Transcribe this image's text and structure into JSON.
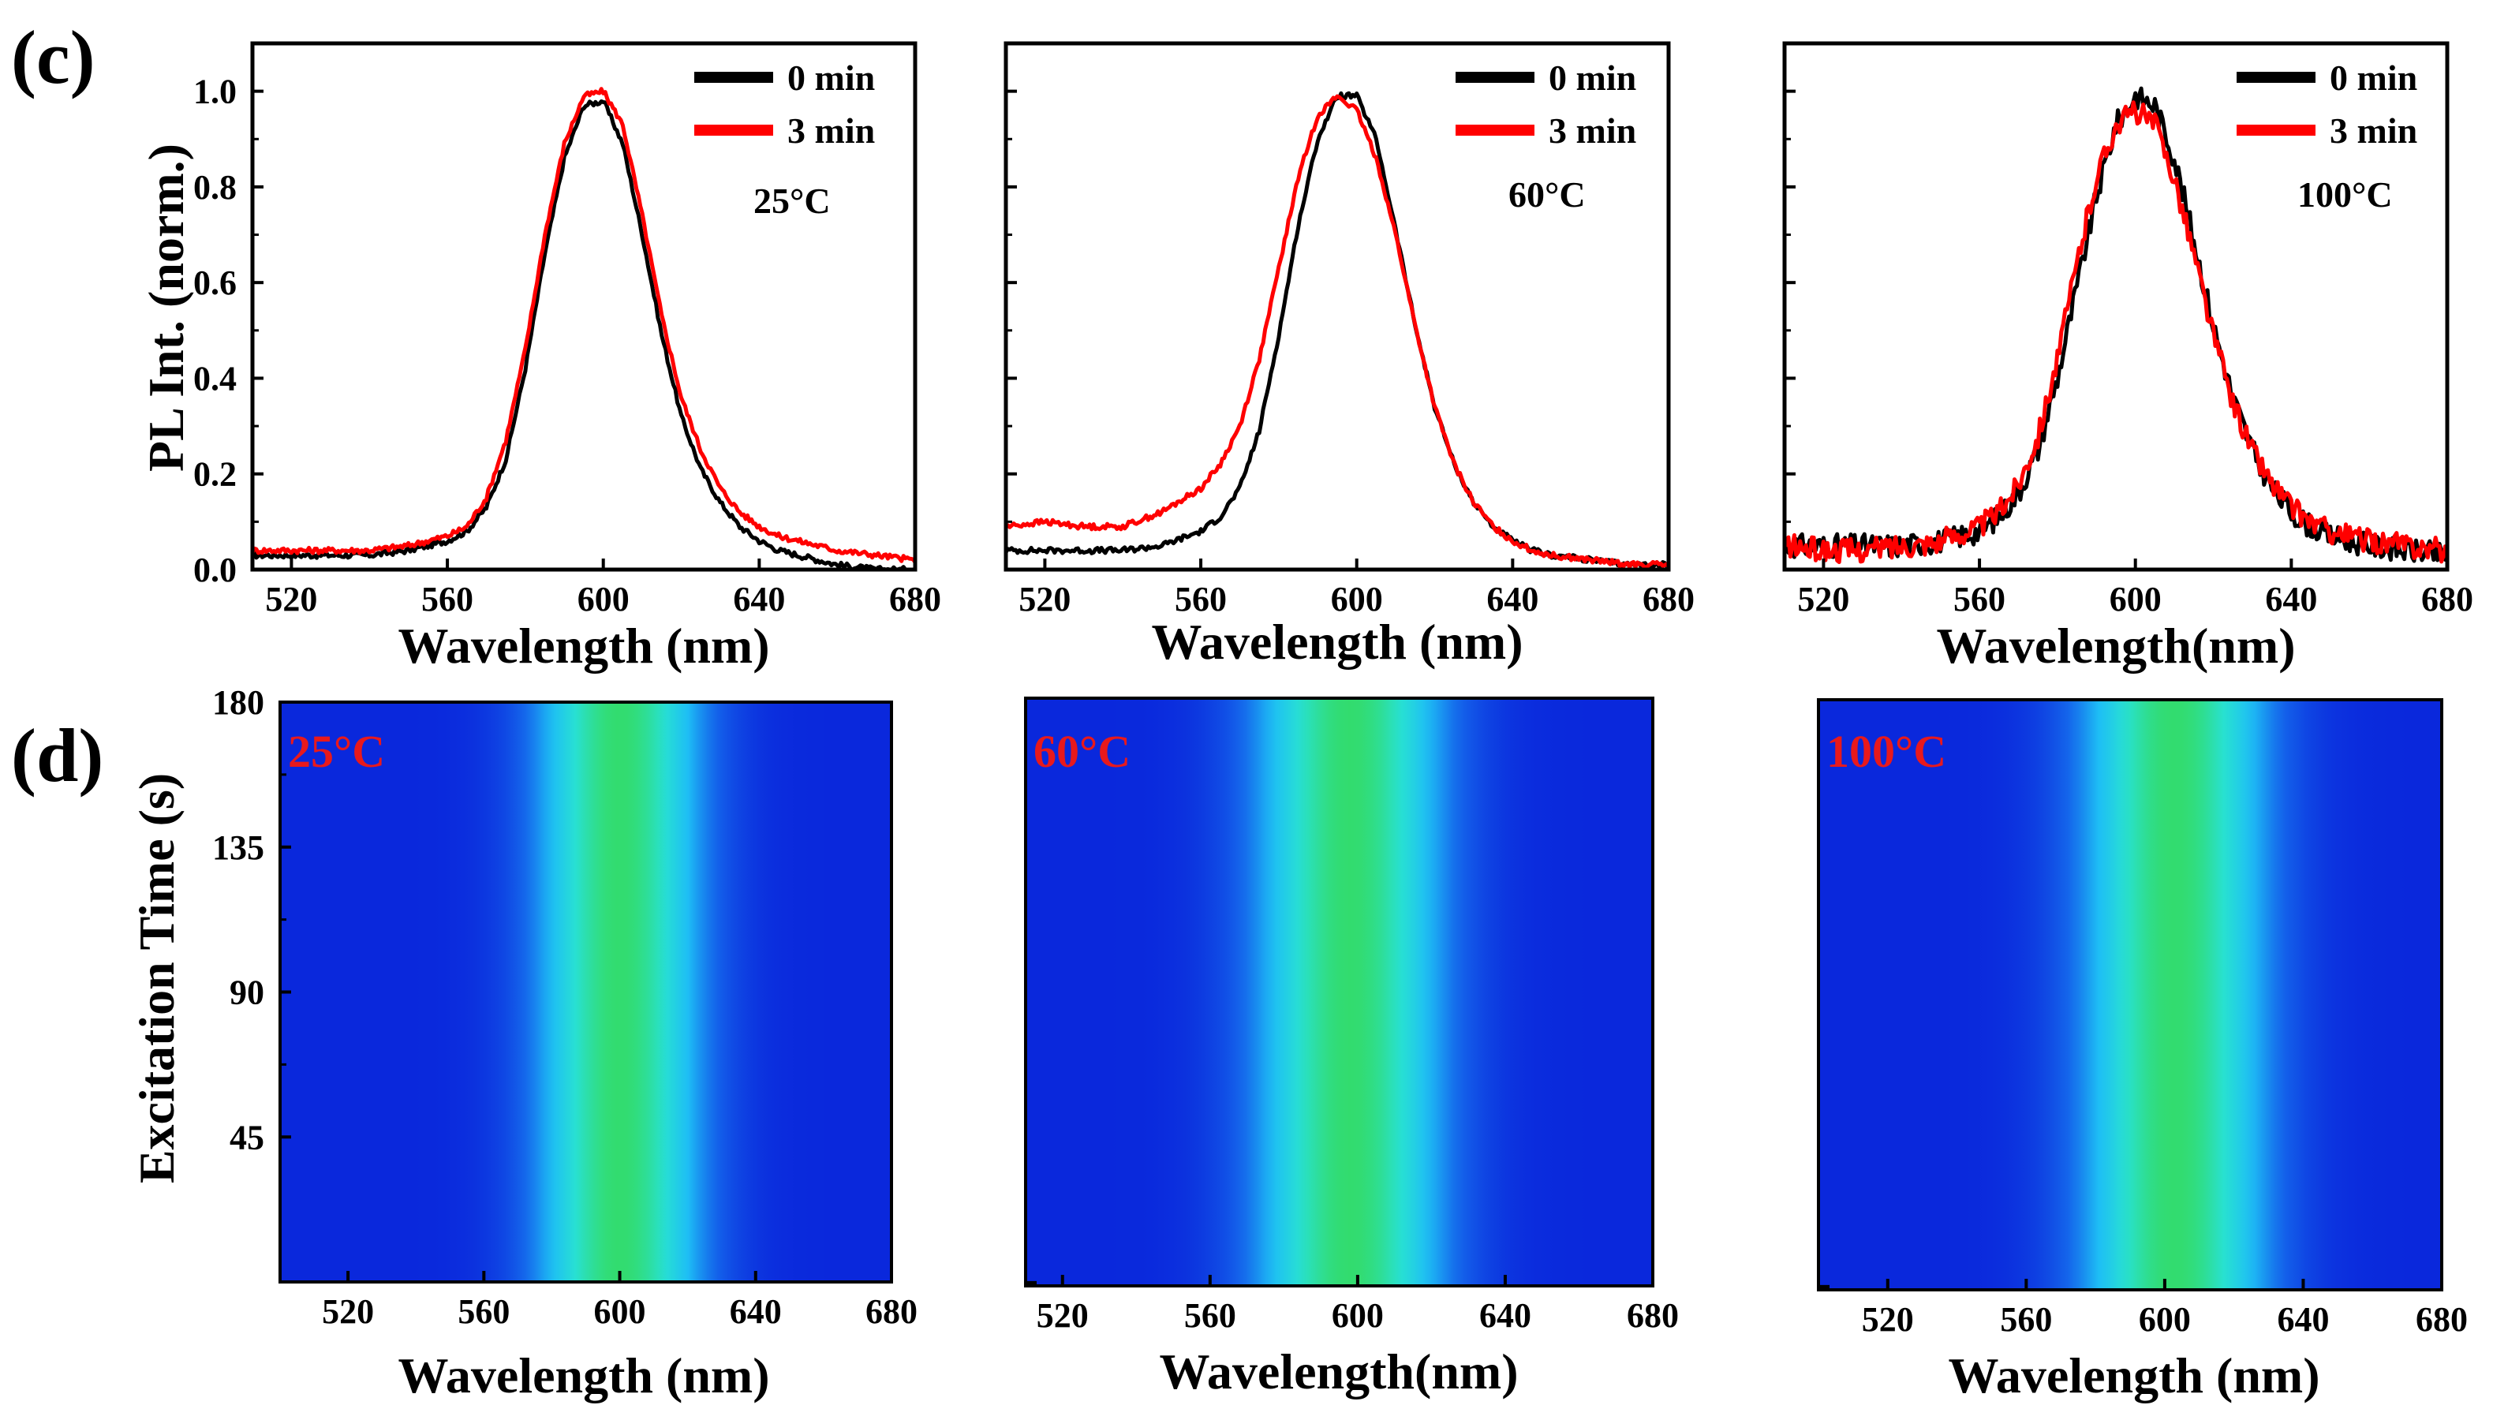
{
  "panel_labels": {
    "c": "(c)",
    "d": "(d)"
  },
  "colors": {
    "series_0min": "#000000",
    "series_3min": "#ff0000",
    "map_label": "#e8191c"
  },
  "chart_data": [
    {
      "id": "c1",
      "type": "line",
      "xlabel": "Wavelength (nm)",
      "ylabel": "PL Int. (norm.)",
      "xlim": [
        510,
        680
      ],
      "ylim": [
        0,
        1.1
      ],
      "xticks": [
        520,
        560,
        600,
        640,
        680
      ],
      "yticks": [
        0.0,
        0.2,
        0.4,
        0.6,
        0.8,
        1.0
      ],
      "annotation": "25°C",
      "legend_position": "top-right",
      "series": [
        {
          "name": "0 min",
          "color": "#000000",
          "x": [
            510,
            520,
            530,
            540,
            550,
            560,
            565,
            570,
            575,
            580,
            585,
            590,
            595,
            600,
            605,
            610,
            615,
            620,
            625,
            630,
            635,
            640,
            645,
            650,
            660,
            670,
            680
          ],
          "y": [
            0.03,
            0.03,
            0.03,
            0.03,
            0.04,
            0.06,
            0.08,
            0.13,
            0.23,
            0.42,
            0.66,
            0.86,
            0.97,
            0.98,
            0.89,
            0.7,
            0.49,
            0.32,
            0.21,
            0.14,
            0.09,
            0.06,
            0.04,
            0.03,
            0.01,
            0.0,
            0.0
          ]
        },
        {
          "name": "3 min",
          "color": "#ff0000",
          "x": [
            510,
            520,
            530,
            540,
            550,
            560,
            565,
            570,
            575,
            580,
            585,
            590,
            595,
            600,
            605,
            610,
            615,
            620,
            625,
            630,
            635,
            640,
            645,
            650,
            660,
            670,
            680
          ],
          "y": [
            0.04,
            0.04,
            0.04,
            0.04,
            0.05,
            0.07,
            0.09,
            0.15,
            0.27,
            0.46,
            0.7,
            0.89,
            0.99,
            1.0,
            0.93,
            0.74,
            0.53,
            0.36,
            0.25,
            0.17,
            0.12,
            0.09,
            0.07,
            0.06,
            0.04,
            0.03,
            0.02
          ]
        }
      ]
    },
    {
      "id": "c2",
      "type": "line",
      "xlabel": "Wavelength (nm)",
      "xlim": [
        510,
        680
      ],
      "ylim": [
        0,
        1.1
      ],
      "xticks": [
        520,
        560,
        600,
        640,
        680
      ],
      "annotation": "60°C",
      "legend_position": "top-right",
      "series": [
        {
          "name": "0 min",
          "color": "#000000",
          "x": [
            510,
            520,
            530,
            540,
            550,
            560,
            565,
            570,
            575,
            580,
            585,
            590,
            595,
            600,
            605,
            610,
            615,
            620,
            625,
            630,
            635,
            640,
            645,
            650,
            660,
            670,
            680
          ],
          "y": [
            0.04,
            0.04,
            0.04,
            0.04,
            0.05,
            0.08,
            0.11,
            0.17,
            0.29,
            0.49,
            0.72,
            0.9,
            0.99,
            0.99,
            0.9,
            0.71,
            0.51,
            0.34,
            0.22,
            0.14,
            0.09,
            0.06,
            0.04,
            0.03,
            0.02,
            0.01,
            0.01
          ]
        },
        {
          "name": "3 min",
          "color": "#ff0000",
          "x": [
            510,
            520,
            530,
            540,
            550,
            560,
            565,
            570,
            575,
            580,
            585,
            590,
            595,
            600,
            605,
            610,
            615,
            620,
            625,
            630,
            635,
            640,
            645,
            650,
            660,
            670,
            680
          ],
          "y": [
            0.09,
            0.1,
            0.09,
            0.09,
            0.12,
            0.17,
            0.22,
            0.3,
            0.44,
            0.63,
            0.82,
            0.95,
            0.99,
            0.96,
            0.86,
            0.7,
            0.51,
            0.34,
            0.22,
            0.14,
            0.09,
            0.06,
            0.04,
            0.03,
            0.02,
            0.01,
            0.01
          ]
        }
      ]
    },
    {
      "id": "c3",
      "type": "line",
      "xlabel": "Wavelength(nm)",
      "xlim": [
        510,
        680
      ],
      "ylim": [
        0,
        1.1
      ],
      "xticks": [
        520,
        560,
        600,
        640,
        680
      ],
      "annotation": "100°C",
      "legend_position": "top-right",
      "series": [
        {
          "name": "0 min",
          "color": "#000000",
          "x": [
            510,
            520,
            530,
            540,
            550,
            560,
            565,
            570,
            575,
            580,
            585,
            590,
            595,
            600,
            605,
            610,
            615,
            620,
            625,
            630,
            635,
            640,
            645,
            650,
            660,
            670,
            680
          ],
          "y": [
            0.05,
            0.05,
            0.05,
            0.05,
            0.06,
            0.08,
            0.11,
            0.16,
            0.25,
            0.4,
            0.59,
            0.78,
            0.93,
            0.99,
            0.97,
            0.86,
            0.69,
            0.51,
            0.36,
            0.25,
            0.17,
            0.12,
            0.09,
            0.07,
            0.05,
            0.04,
            0.03
          ]
        },
        {
          "name": "3 min",
          "color": "#ff0000",
          "x": [
            510,
            520,
            530,
            540,
            550,
            560,
            565,
            570,
            575,
            580,
            585,
            590,
            595,
            600,
            605,
            610,
            615,
            620,
            625,
            630,
            635,
            640,
            645,
            650,
            660,
            670,
            680
          ],
          "y": [
            0.05,
            0.04,
            0.04,
            0.05,
            0.06,
            0.09,
            0.12,
            0.18,
            0.28,
            0.44,
            0.64,
            0.82,
            0.93,
            0.96,
            0.93,
            0.82,
            0.66,
            0.49,
            0.35,
            0.25,
            0.18,
            0.13,
            0.1,
            0.08,
            0.06,
            0.05,
            0.04
          ]
        }
      ]
    },
    {
      "id": "d1",
      "type": "heatmap",
      "xlabel": "Wavelength (nm)",
      "ylabel": "Excitation Time (s)",
      "xlim": [
        500,
        680
      ],
      "ylim": [
        0,
        180
      ],
      "xticks": [
        520,
        560,
        600,
        640,
        680
      ],
      "yticks": [
        45,
        90,
        135,
        180
      ],
      "annotation": "25°C",
      "peak_center_nm": 600,
      "peak_fwhm_nm": 40
    },
    {
      "id": "d2",
      "type": "heatmap",
      "xlabel": "Wavelength(nm)",
      "xlim": [
        510,
        680
      ],
      "ylim": [
        0,
        180
      ],
      "xticks": [
        520,
        560,
        600,
        640,
        680
      ],
      "annotation": "60°C",
      "peak_center_nm": 598,
      "peak_fwhm_nm": 42
    },
    {
      "id": "d3",
      "type": "heatmap",
      "xlabel": "Wavelength (nm)",
      "xlim": [
        500,
        680
      ],
      "ylim": [
        0,
        180
      ],
      "xticks": [
        520,
        560,
        600,
        640,
        680
      ],
      "annotation": "100°C",
      "peak_center_nm": 603,
      "peak_fwhm_nm": 44
    }
  ]
}
